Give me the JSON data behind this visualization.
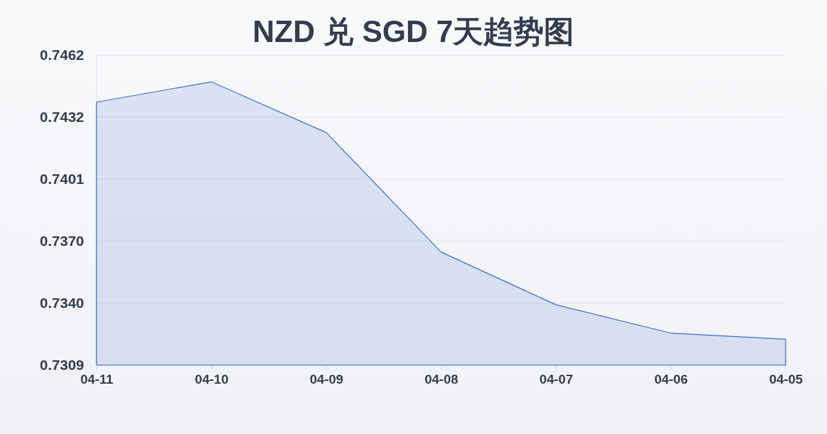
{
  "chart_data": {
    "type": "area",
    "title": "NZD 兑 SGD 7天趋势图",
    "categories": [
      "04-11",
      "04-10",
      "04-09",
      "04-08",
      "04-07",
      "04-06",
      "04-05"
    ],
    "values": [
      0.7439,
      0.7449,
      0.7424,
      0.7365,
      0.7339,
      0.7325,
      0.7322
    ],
    "color": "#3a6bd1",
    "ylim": [
      0.73092,
      0.74622
    ],
    "yticks": [
      {
        "value": 0.73092,
        "label": "0.7309"
      },
      {
        "value": 0.73398,
        "label": "0.7340"
      },
      {
        "value": 0.73704,
        "label": "0.7370"
      },
      {
        "value": 0.7401,
        "label": "0.7401"
      },
      {
        "value": 0.74316,
        "label": "0.7432"
      },
      {
        "value": 0.74622,
        "label": "0.7462"
      }
    ],
    "grid": "y"
  }
}
